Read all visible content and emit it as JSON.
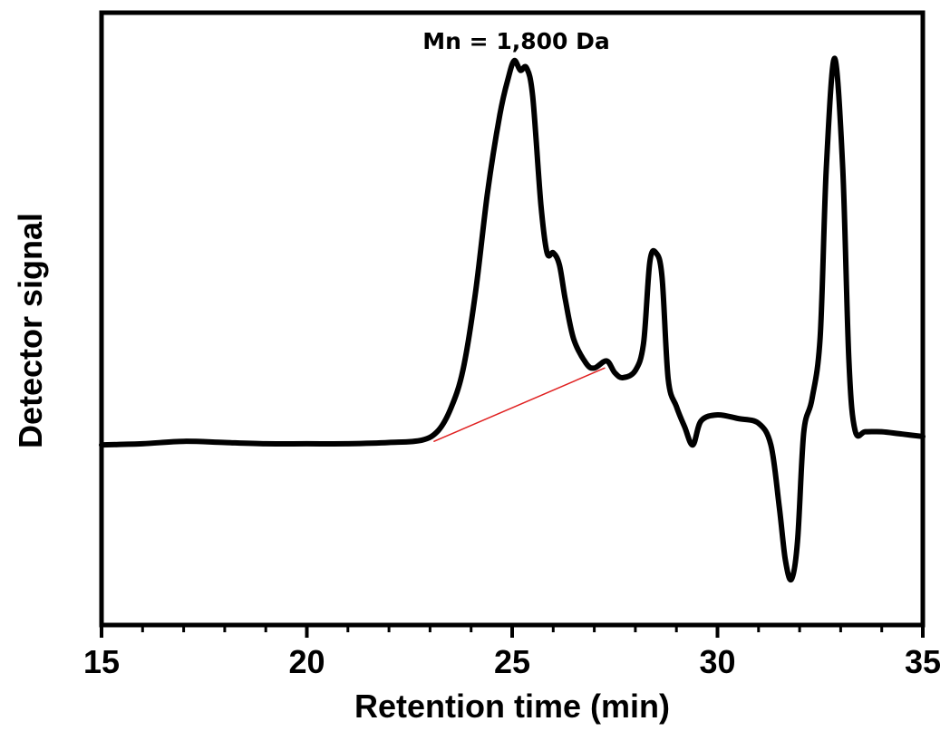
{
  "chart_data": {
    "type": "line",
    "title": "",
    "xlabel": "Retention time (min)",
    "ylabel": "Detector signal",
    "xlim": [
      15,
      35
    ],
    "ylim": [
      -1.5,
      3.6
    ],
    "y_tick_labels_shown": false,
    "x_ticks": [
      15,
      20,
      25,
      30,
      35
    ],
    "x_tick_labels": [
      "15",
      "20",
      "25",
      "30",
      "35"
    ],
    "grid": false,
    "legend": "none",
    "annotation": {
      "text": "Mn = 1,800 Da",
      "x": 25.1,
      "y": 3.3
    },
    "series": [
      {
        "color": "#000000",
        "x": [
          15.0,
          16.0,
          17.0,
          18.0,
          19.0,
          20.0,
          21.0,
          22.0,
          22.8,
          23.2,
          23.5,
          23.8,
          24.1,
          24.4,
          24.7,
          24.9,
          25.05,
          25.2,
          25.35,
          25.5,
          25.7,
          25.85,
          26.0,
          26.15,
          26.3,
          26.5,
          26.8,
          27.0,
          27.3,
          27.5,
          27.7,
          28.0,
          28.2,
          28.35,
          28.5,
          28.65,
          28.8,
          29.0,
          29.2,
          29.4,
          29.6,
          30.0,
          30.5,
          31.0,
          31.3,
          31.5,
          31.65,
          31.8,
          31.95,
          32.1,
          32.3,
          32.5,
          32.65,
          32.85,
          33.05,
          33.2,
          33.35,
          33.6,
          34.0,
          34.5,
          35.0
        ],
        "values": [
          0.0,
          0.01,
          0.03,
          0.02,
          0.01,
          0.01,
          0.01,
          0.02,
          0.04,
          0.12,
          0.3,
          0.62,
          1.25,
          2.1,
          2.75,
          3.05,
          3.2,
          3.12,
          3.14,
          2.9,
          2.0,
          1.6,
          1.6,
          1.5,
          1.2,
          0.88,
          0.68,
          0.64,
          0.7,
          0.6,
          0.56,
          0.62,
          0.85,
          1.52,
          1.6,
          1.4,
          0.55,
          0.32,
          0.15,
          0.0,
          0.2,
          0.25,
          0.22,
          0.18,
          0.0,
          -0.5,
          -0.95,
          -1.12,
          -0.8,
          0.1,
          0.38,
          0.9,
          2.3,
          3.22,
          2.3,
          0.7,
          0.12,
          0.11,
          0.11,
          0.09,
          0.07
        ]
      },
      {
        "color": "#e02020",
        "x": [
          23.1,
          27.25
        ],
        "values": [
          0.03,
          0.64
        ]
      }
    ]
  }
}
